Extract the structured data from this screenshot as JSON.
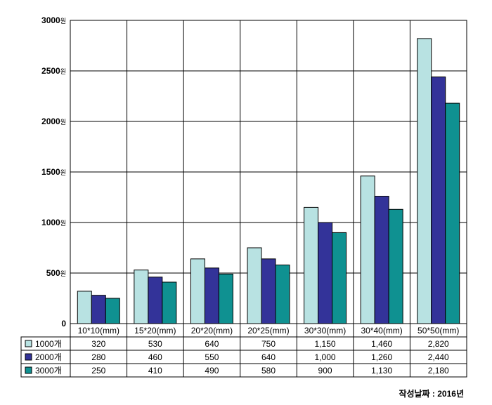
{
  "chart_data": {
    "type": "bar",
    "categories": [
      "10*10(mm)",
      "15*20(mm)",
      "20*20(mm)",
      "20*25(mm)",
      "30*30(mm)",
      "30*40(mm)",
      "50*50(mm)"
    ],
    "series": [
      {
        "name": "1000개",
        "values": [
          320,
          530,
          640,
          750,
          1150,
          1460,
          2820
        ],
        "color": "#b8e2e2"
      },
      {
        "name": "2000개",
        "values": [
          280,
          460,
          550,
          640,
          1000,
          1260,
          2440
        ],
        "color": "#333399"
      },
      {
        "name": "3000개",
        "values": [
          250,
          410,
          490,
          580,
          900,
          1130,
          2180
        ],
        "color": "#0f9191"
      }
    ],
    "data_table": [
      [
        "320",
        "530",
        "640",
        "750",
        "1,150",
        "1,460",
        "2,820"
      ],
      [
        "280",
        "460",
        "550",
        "640",
        "1,000",
        "1,260",
        "2,440"
      ],
      [
        "250",
        "410",
        "490",
        "580",
        "900",
        "1,130",
        "2,180"
      ]
    ],
    "yticks": [
      0,
      500,
      1000,
      1500,
      2000,
      2500,
      3000
    ],
    "ytick_unit": "원",
    "ylim": [
      0,
      3000
    ],
    "grid": true,
    "legend_placement": "data-table-left",
    "title": "",
    "xlabel": "",
    "ylabel": ""
  },
  "footnote": "작성날짜 : 2016년"
}
